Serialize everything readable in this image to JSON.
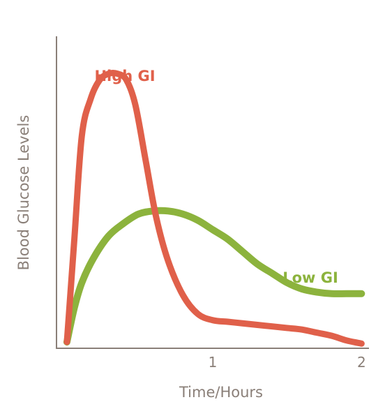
{
  "chart_data": {
    "type": "line",
    "title": "",
    "xlabel": "Time/Hours",
    "ylabel": "Blood Glucose Levels",
    "xlim": [
      -0.05,
      2.05
    ],
    "ylim": [
      0,
      100
    ],
    "x_ticks": [
      {
        "value": 1,
        "label": "1"
      },
      {
        "value": 2,
        "label": "2"
      }
    ],
    "grid": false,
    "legend": "inline labels",
    "series": [
      {
        "name": "High GI",
        "color": "#e0604a",
        "x": [
          0.02,
          0.07,
          0.12,
          0.18,
          0.24,
          0.3,
          0.36,
          0.42,
          0.48,
          0.55,
          0.62,
          0.7,
          0.8,
          0.9,
          1.0,
          1.1,
          1.2,
          1.3,
          1.4,
          1.5,
          1.6,
          1.7,
          1.8,
          1.9,
          2.0
        ],
        "y": [
          2,
          35,
          68,
          80,
          86,
          88,
          88,
          86,
          78,
          60,
          42,
          28,
          17,
          11,
          9,
          8.5,
          8,
          7.5,
          7,
          6.5,
          6,
          5,
          4,
          2.5,
          1.5
        ]
      },
      {
        "name": "Low GI",
        "color": "#8cb33d",
        "x": [
          0.02,
          0.07,
          0.12,
          0.2,
          0.3,
          0.4,
          0.5,
          0.6,
          0.7,
          0.8,
          0.9,
          1.0,
          1.1,
          1.2,
          1.3,
          1.4,
          1.5,
          1.6,
          1.7,
          1.8,
          1.9,
          2.0
        ],
        "y": [
          2,
          13,
          21,
          29,
          36,
          40,
          43,
          44,
          44,
          43,
          41,
          38,
          35,
          31,
          27,
          24,
          21,
          19,
          18,
          17.5,
          17.5,
          17.5
        ]
      }
    ]
  }
}
